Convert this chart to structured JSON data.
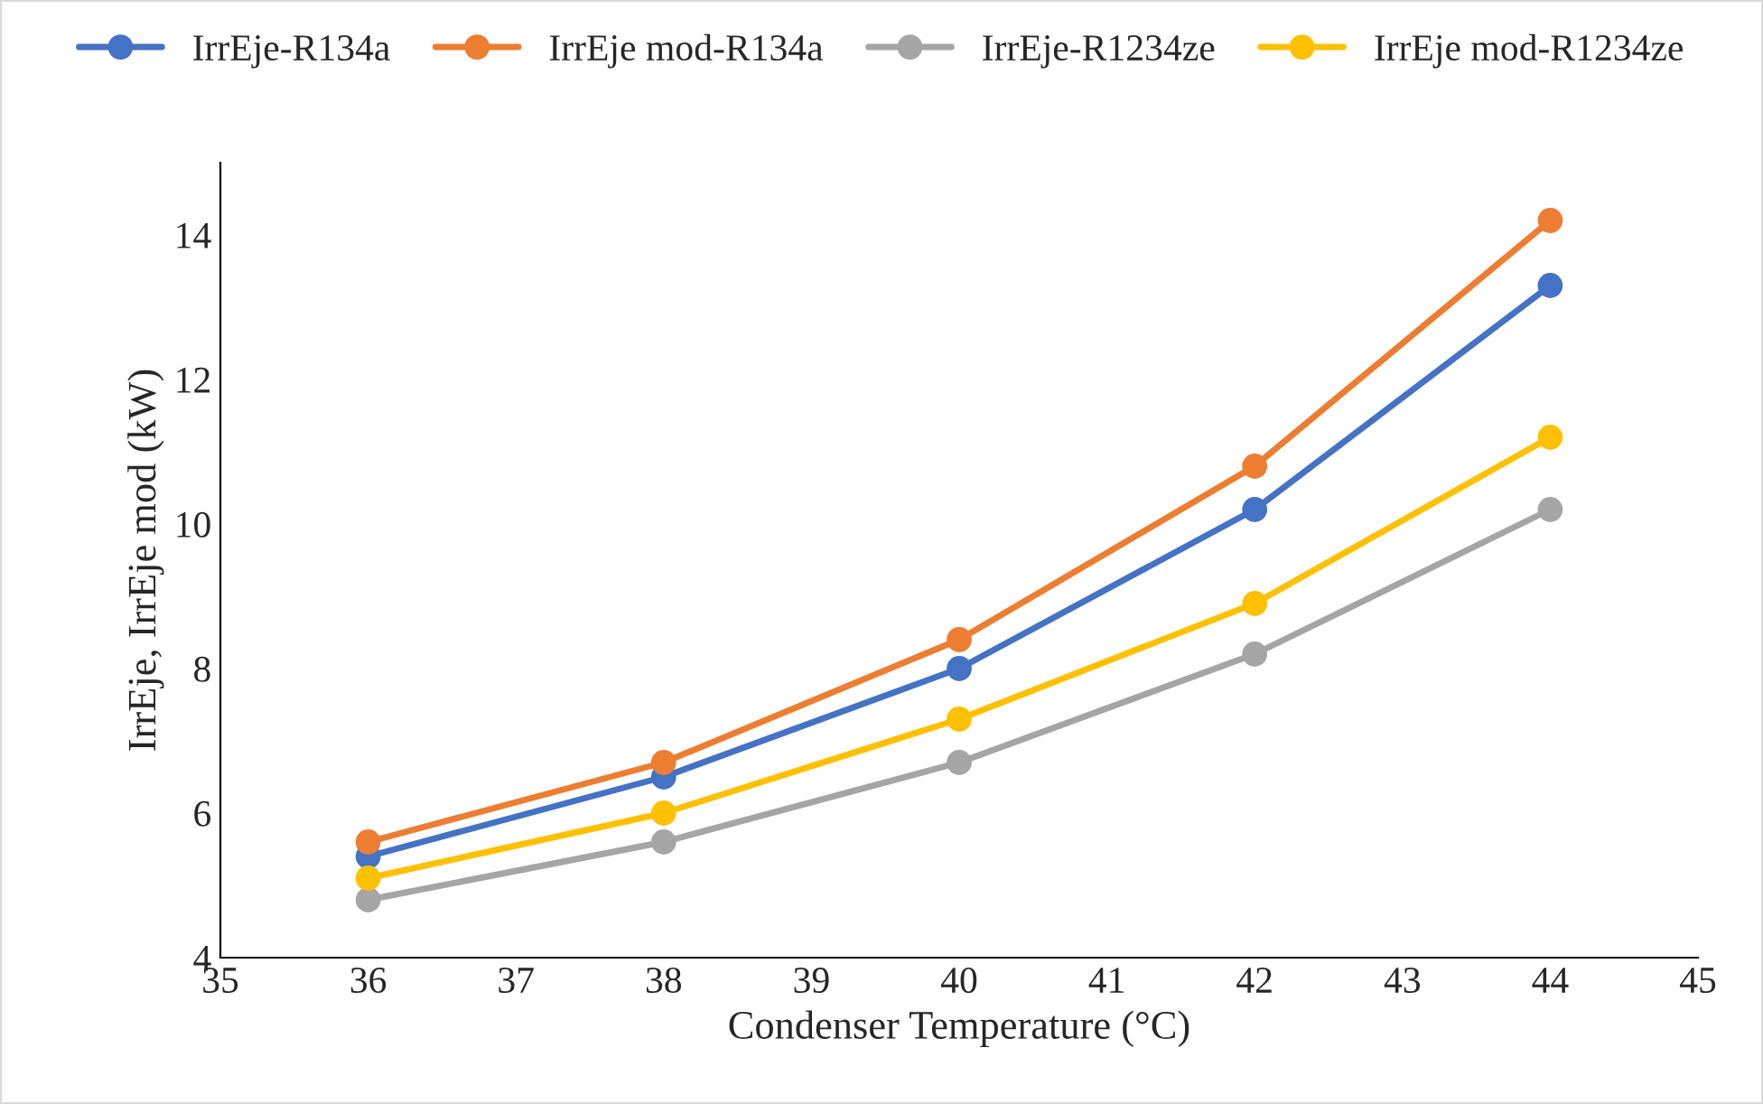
{
  "chart_data": {
    "type": "line",
    "xlabel": "Condenser Temperature (°C)",
    "ylabel": "IrrEje, IrrEje mod (kW)",
    "x": [
      36,
      38,
      40,
      42,
      44
    ],
    "series": [
      {
        "name": "IrrEje-R134a",
        "color": "#4472c4",
        "values": [
          5.4,
          6.5,
          8.0,
          10.2,
          13.3
        ]
      },
      {
        "name": "IrrEje mod-R134a",
        "color": "#ed7d31",
        "values": [
          5.6,
          6.7,
          8.4,
          10.8,
          14.2
        ]
      },
      {
        "name": "IrrEje-R1234ze",
        "color": "#a5a5a5",
        "values": [
          4.8,
          5.6,
          6.7,
          8.2,
          10.2
        ]
      },
      {
        "name": "IrrEje mod-R1234ze",
        "color": "#ffc000",
        "values": [
          5.1,
          6.0,
          7.3,
          8.9,
          11.2
        ]
      }
    ],
    "xlim": [
      35,
      45
    ],
    "xticks": [
      35,
      36,
      37,
      38,
      39,
      40,
      41,
      42,
      43,
      44,
      45
    ],
    "ylim": [
      4,
      15
    ],
    "yticks": [
      4,
      6,
      8,
      10,
      12,
      14
    ],
    "grid": false,
    "legend": "top",
    "marker": "circle",
    "line_style": "solid"
  }
}
